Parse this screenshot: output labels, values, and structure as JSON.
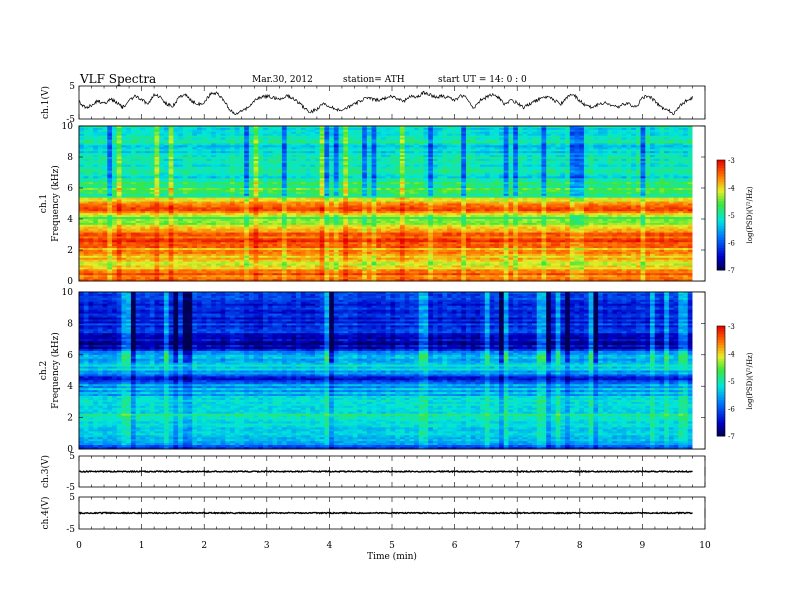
{
  "header": {
    "title": "VLF  Spectra",
    "date": "Mar.30, 2012",
    "station": "station= ATH",
    "start": "start  UT  =   14: 0  : 0"
  },
  "chart_data": [
    {
      "type": "line",
      "title": "",
      "ylabel": "ch.1(V)",
      "ylim": [
        -5,
        5
      ],
      "yticks": [
        "5",
        "-5"
      ],
      "xlim": [
        0,
        10
      ],
      "x": [
        0.0,
        0.1,
        0.2,
        0.3,
        0.4,
        0.5,
        0.6,
        0.7,
        0.8,
        0.9,
        1.0,
        1.1,
        1.2,
        1.3,
        1.4,
        1.5,
        1.6,
        1.7,
        1.8,
        1.9,
        2.0,
        2.1,
        2.2,
        2.3,
        2.4,
        2.5,
        2.6,
        2.7,
        2.8,
        2.9,
        3.0,
        3.1,
        3.2,
        3.3,
        3.4,
        3.5,
        3.6,
        3.7,
        3.8,
        3.9,
        4.0,
        4.1,
        4.2,
        4.3,
        4.4,
        4.5,
        4.6,
        4.7,
        4.8,
        4.9,
        5.0,
        5.1,
        5.2,
        5.3,
        5.4,
        5.5,
        5.6,
        5.7,
        5.8,
        5.9,
        6.0,
        6.1,
        6.2,
        6.3,
        6.4,
        6.5,
        6.6,
        6.7,
        6.8,
        6.9,
        7.0,
        7.1,
        7.2,
        7.3,
        7.4,
        7.5,
        7.6,
        7.7,
        7.8,
        7.9,
        8.0,
        8.1,
        8.2,
        8.3,
        8.4,
        8.5,
        8.6,
        8.7,
        8.8,
        8.9,
        9.0,
        9.1,
        9.2,
        9.3,
        9.4,
        9.5,
        9.6,
        9.7,
        9.8
      ],
      "y": [
        0.2,
        -1.5,
        -1.0,
        0.5,
        -0.5,
        1.0,
        0.0,
        -1.5,
        0.5,
        2.0,
        1.0,
        -0.5,
        2.5,
        1.5,
        -0.5,
        -1.0,
        1.5,
        2.5,
        0.5,
        -0.5,
        0.0,
        2.5,
        3.0,
        1.0,
        -2.0,
        -3.5,
        -2.5,
        -1.5,
        0.5,
        1.5,
        2.0,
        1.5,
        1.0,
        2.0,
        1.5,
        0.0,
        -1.5,
        -3.0,
        -2.0,
        -0.5,
        -1.0,
        -2.0,
        -2.5,
        -1.5,
        -0.5,
        0.5,
        1.5,
        1.0,
        0.5,
        1.5,
        2.0,
        1.0,
        0.5,
        2.0,
        1.5,
        3.0,
        2.5,
        1.5,
        2.0,
        1.5,
        0.5,
        2.0,
        1.5,
        -2.0,
        0.5,
        1.5,
        2.5,
        1.5,
        -0.5,
        0.5,
        0.0,
        -1.5,
        -0.5,
        0.5,
        1.5,
        2.0,
        0.5,
        -0.5,
        1.5,
        2.5,
        0.5,
        -1.0,
        -1.5,
        -0.5,
        0.0,
        -1.0,
        -1.5,
        -0.5,
        -0.5,
        -1.5,
        1.5,
        2.0,
        0.5,
        -1.5,
        -2.0,
        -3.5,
        -1.0,
        0.5,
        1.5
      ]
    },
    {
      "type": "heatmap",
      "title": "",
      "ylabel": "ch.1  Frequency  (kHz)",
      "ylim": [
        0,
        10
      ],
      "yticks": [
        "0",
        "2",
        "4",
        "6",
        "8",
        "10"
      ],
      "xlim": [
        0,
        10
      ],
      "colorbar": {
        "label": "log(PSD)(V²/Hz)",
        "ticks": [
          "-3",
          "-4",
          "-5",
          "-6",
          "-7"
        ],
        "range": [
          -7,
          -3
        ]
      },
      "frequency_profile_khz": [
        0.0,
        0.5,
        1.0,
        1.5,
        2.0,
        2.5,
        3.0,
        3.5,
        4.0,
        4.5,
        5.0,
        5.5,
        6.0,
        6.5,
        7.0,
        7.5,
        8.0,
        8.5,
        9.0,
        9.5,
        10.0
      ],
      "log_psd_profile": [
        -3.3,
        -3.6,
        -4.1,
        -3.9,
        -3.8,
        -3.4,
        -3.5,
        -4.1,
        -4.6,
        -3.5,
        -3.4,
        -4.8,
        -4.6,
        -5.1,
        -5.1,
        -5.0,
        -5.1,
        -5.2,
        -5.1,
        -5.3,
        -5.3
      ]
    },
    {
      "type": "heatmap",
      "title": "",
      "ylabel": "ch.2  Frequency  (kHz)",
      "ylim": [
        0,
        10
      ],
      "yticks": [
        "0",
        "2",
        "4",
        "6",
        "8",
        "10"
      ],
      "xlim": [
        0,
        10
      ],
      "colorbar": {
        "label": "log(PSD)(V²/Hz)",
        "ticks": [
          "-3",
          "-4",
          "-5",
          "-6",
          "-7"
        ],
        "range": [
          -7,
          -3
        ]
      },
      "frequency_profile_khz": [
        0.0,
        0.5,
        1.0,
        1.5,
        2.0,
        2.5,
        3.0,
        3.5,
        4.0,
        4.5,
        5.0,
        5.5,
        6.0,
        6.5,
        7.0,
        7.5,
        8.0,
        8.5,
        9.0,
        9.5,
        10.0
      ],
      "log_psd_profile": [
        -6.6,
        -5.3,
        -5.4,
        -5.2,
        -5.0,
        -5.1,
        -5.3,
        -5.5,
        -5.6,
        -6.3,
        -5.4,
        -5.3,
        -5.5,
        -6.6,
        -6.6,
        -6.1,
        -6.2,
        -6.4,
        -6.1,
        -6.3,
        -6.0
      ]
    },
    {
      "type": "line",
      "title": "",
      "ylabel": "ch.3(V)",
      "ylim": [
        -5,
        5
      ],
      "yticks": [
        "5",
        "-5"
      ],
      "xlim": [
        0,
        10
      ],
      "x": [
        0,
        9.8
      ],
      "y": [
        0,
        0
      ]
    },
    {
      "type": "line",
      "title": "",
      "ylabel": "ch.4(V)",
      "ylim": [
        -5,
        5
      ],
      "yticks": [
        "5",
        "-5"
      ],
      "xlim": [
        0,
        10
      ],
      "xlabel": "Time  (min)",
      "xticks": [
        "0",
        "1",
        "2",
        "3",
        "4",
        "5",
        "6",
        "7",
        "8",
        "9",
        "10"
      ],
      "x": [
        0,
        9.8
      ],
      "y": [
        0,
        0
      ]
    }
  ]
}
